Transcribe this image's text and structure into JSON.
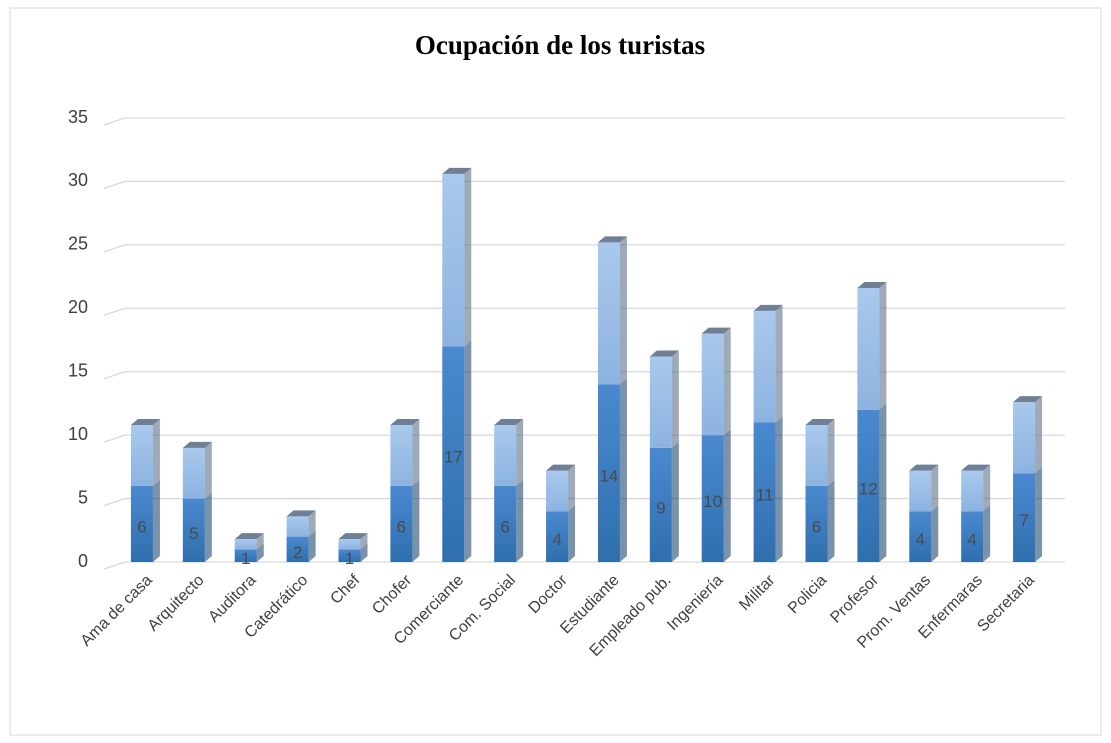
{
  "chart_data": {
    "type": "bar",
    "stacked": true,
    "title": "Ocupación de los turistas",
    "categories": [
      "Ama de casa",
      "Arquitecto",
      "Auditora",
      "Catedrático",
      "Chef",
      "Chofer",
      "Comerciante",
      "Com. Social",
      "Doctor",
      "Estudiante",
      "Empleado pub.",
      "Ingeniería",
      "Militar",
      "Policia",
      "Profesor",
      "Prom. Ventas",
      "Enfermaras",
      "Secretaria"
    ],
    "series": [
      {
        "color": "#3a7cc0",
        "values": [
          6,
          5,
          1,
          2,
          1,
          6,
          17,
          6,
          4,
          14,
          9,
          10,
          11,
          6,
          12,
          4,
          4,
          7
        ],
        "data_labels": true
      },
      {
        "color": "#9cbfe6",
        "values": [
          4.8,
          4,
          0.8,
          1.6,
          0.8,
          4.8,
          13.6,
          4.8,
          3.2,
          11.2,
          7.2,
          8,
          8.8,
          4.8,
          9.6,
          3.2,
          3.2,
          5.6
        ],
        "data_labels": false
      }
    ],
    "ylim": [
      0,
      35
    ],
    "yticks": [
      0,
      5,
      10,
      15,
      20,
      25,
      30,
      35
    ],
    "grid": true
  }
}
